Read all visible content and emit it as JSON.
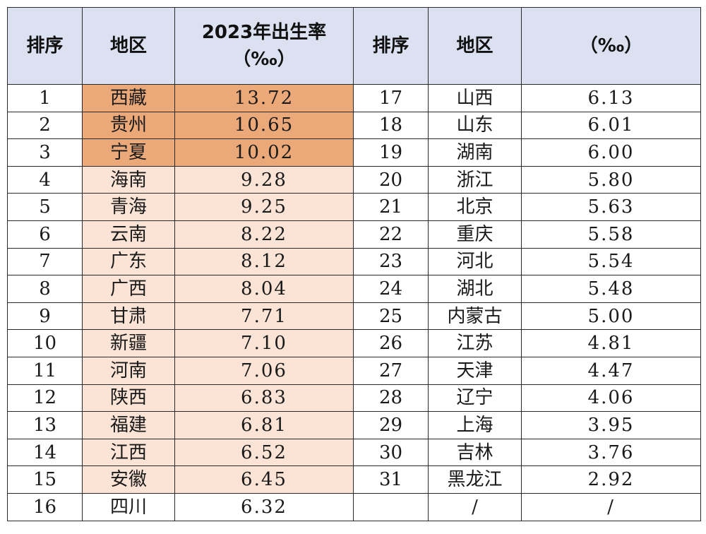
{
  "header": {
    "left": {
      "rank": "排序",
      "region": "地区",
      "rate_line1": "2023年出生率",
      "rate_line2": "（‰）"
    },
    "right": {
      "rank": "排序",
      "region": "地区",
      "rate_line1": "",
      "rate_line2": "（‰）"
    }
  },
  "colors": {
    "header_bg": "#dbe1f1",
    "top3_highlight": "#eba97a",
    "left_column_tint": "#fbe4d5",
    "border": "#2a2a2a"
  },
  "left_rows": [
    {
      "rank": "1",
      "region": "西藏",
      "rate": "13.72"
    },
    {
      "rank": "2",
      "region": "贵州",
      "rate": "10.65"
    },
    {
      "rank": "3",
      "region": "宁夏",
      "rate": "10.02"
    },
    {
      "rank": "4",
      "region": "海南",
      "rate": "9.28"
    },
    {
      "rank": "5",
      "region": "青海",
      "rate": "9.25"
    },
    {
      "rank": "6",
      "region": "云南",
      "rate": "8.22"
    },
    {
      "rank": "7",
      "region": "广东",
      "rate": "8.12"
    },
    {
      "rank": "8",
      "region": "广西",
      "rate": "8.04"
    },
    {
      "rank": "9",
      "region": "甘肃",
      "rate": "7.71"
    },
    {
      "rank": "10",
      "region": "新疆",
      "rate": "7.10"
    },
    {
      "rank": "11",
      "region": "河南",
      "rate": "7.06"
    },
    {
      "rank": "12",
      "region": "陕西",
      "rate": "6.83"
    },
    {
      "rank": "13",
      "region": "福建",
      "rate": "6.81"
    },
    {
      "rank": "14",
      "region": "江西",
      "rate": "6.52"
    },
    {
      "rank": "15",
      "region": "安徽",
      "rate": "6.45"
    },
    {
      "rank": "16",
      "region": "四川",
      "rate": "6.32"
    }
  ],
  "right_rows": [
    {
      "rank": "17",
      "region": "山西",
      "rate": "6.13"
    },
    {
      "rank": "18",
      "region": "山东",
      "rate": "6.01"
    },
    {
      "rank": "19",
      "region": "湖南",
      "rate": "6.00"
    },
    {
      "rank": "20",
      "region": "浙江",
      "rate": "5.80"
    },
    {
      "rank": "21",
      "region": "北京",
      "rate": "5.63"
    },
    {
      "rank": "22",
      "region": "重庆",
      "rate": "5.58"
    },
    {
      "rank": "23",
      "region": "河北",
      "rate": "5.54"
    },
    {
      "rank": "24",
      "region": "湖北",
      "rate": "5.48"
    },
    {
      "rank": "25",
      "region": "内蒙古",
      "rate": "5.00"
    },
    {
      "rank": "26",
      "region": "江苏",
      "rate": "4.81"
    },
    {
      "rank": "27",
      "region": "天津",
      "rate": "4.47"
    },
    {
      "rank": "28",
      "region": "辽宁",
      "rate": "4.06"
    },
    {
      "rank": "29",
      "region": "上海",
      "rate": "3.95"
    },
    {
      "rank": "30",
      "region": "吉林",
      "rate": "3.76"
    },
    {
      "rank": "31",
      "region": "黑龙江",
      "rate": "2.92"
    },
    {
      "rank": "",
      "region": "/",
      "rate": "/"
    }
  ]
}
